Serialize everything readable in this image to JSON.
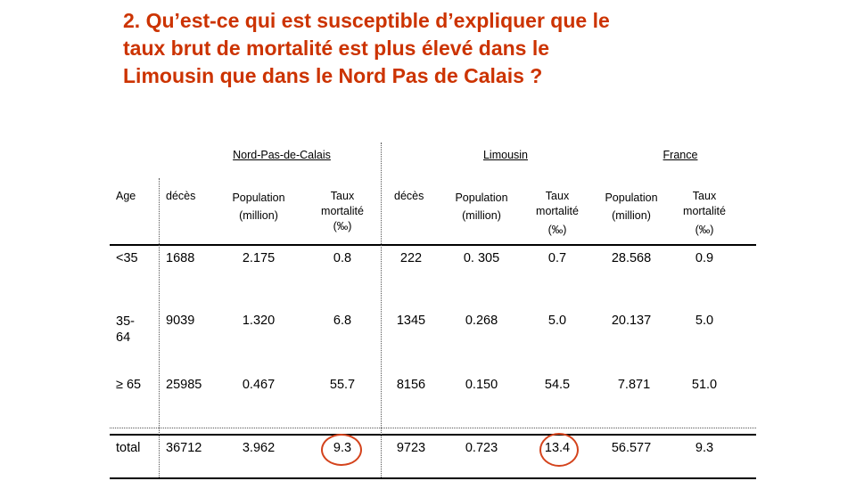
{
  "title_lines": [
    "2. Qu’est-ce qui est susceptible d’expliquer que le",
    "taux brut de mortalité est plus élevé dans le",
    "Limousin que dans le Nord Pas de Calais ?"
  ],
  "groups": {
    "npc": "Nord-Pas-de-Calais",
    "lim": "Limousin",
    "fr": "France"
  },
  "headers": {
    "age": "Age",
    "deces_npc": "décès",
    "pop_npc": [
      "Population",
      "(million)"
    ],
    "taux_npc": [
      "Taux",
      "mortalité",
      "(‰)"
    ],
    "deces_lim": "décès",
    "pop_lim": [
      "Population",
      "(million)"
    ],
    "taux_lim": [
      "Taux",
      "mortalité",
      "(‰)"
    ],
    "pop_fr": [
      "Population",
      "(million)"
    ],
    "taux_fr": [
      "Taux",
      "mortalité",
      "(‰)"
    ]
  },
  "rows": [
    {
      "age": [
        "<35"
      ],
      "deces_npc": "1688",
      "pop_npc": "2.175",
      "taux_npc": "0.8",
      "deces_lim": "222",
      "pop_lim": "0. 305",
      "taux_lim": "0.7",
      "pop_fr": "28.568",
      "taux_fr": "0.9"
    },
    {
      "age": [
        "35-",
        "64"
      ],
      "deces_npc": "9039",
      "pop_npc": "1.320",
      "taux_npc": "6.8",
      "deces_lim": "1345",
      "pop_lim": "0.268",
      "taux_lim": "5.0",
      "pop_fr": "20.137",
      "taux_fr": "5.0"
    },
    {
      "age": [
        "≥ 65"
      ],
      "deces_npc": "25985",
      "pop_npc": "0.467",
      "taux_npc": "55.7",
      "deces_lim": "8156",
      "pop_lim": "0.150",
      "taux_lim": "54.5",
      "pop_fr": "7.871",
      "taux_fr": "51.0"
    },
    {
      "age": [
        "total"
      ],
      "deces_npc": "36712",
      "pop_npc": "3.962",
      "taux_npc": "9.3",
      "deces_lim": "9723",
      "pop_lim": "0.723",
      "taux_lim": "13.4",
      "pop_fr": "56.577",
      "taux_fr": "9.3"
    }
  ],
  "highlight_color": "#d4431c",
  "title_color": "#cc3300"
}
